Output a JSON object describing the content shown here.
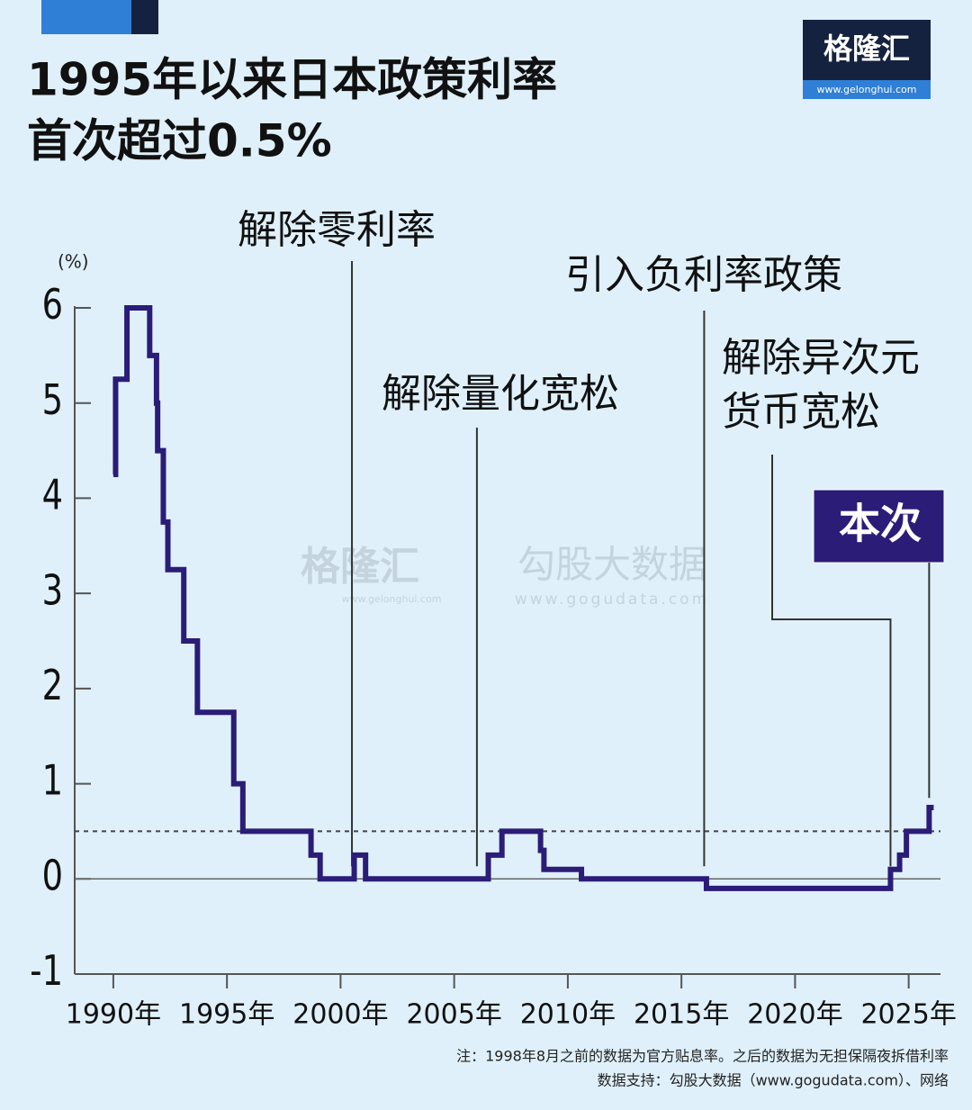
{
  "chart_data": {
    "type": "step",
    "title_lines": [
      "1995年以来日本政策利率",
      "首次超过0.5%"
    ],
    "y_unit": "(%)",
    "brand": {
      "name": "格隆汇",
      "url": "www.gelonghui.com"
    },
    "watermarks": [
      "格隆汇",
      "www.gelonghui.com",
      "勾股大数据",
      "www.gogudata.com"
    ],
    "color": "#2b1c78",
    "x": [
      1990.0,
      1990.1,
      1990.6,
      1991.6,
      1991.9,
      1991.95,
      1992.2,
      1992.4,
      1993.1,
      1993.7,
      1995.3,
      1995.7,
      1998.7,
      1999.1,
      2000.6,
      2001.1,
      2006.5,
      2007.1,
      2008.8,
      2008.95,
      2010.6,
      2016.1,
      2024.2,
      2024.6,
      2024.9,
      2025.9,
      2026.1
    ],
    "values": [
      4.25,
      5.25,
      6.0,
      5.5,
      5.0,
      4.5,
      3.75,
      3.25,
      2.5,
      1.75,
      1.0,
      0.5,
      0.25,
      0.0,
      0.25,
      0.0,
      0.25,
      0.5,
      0.3,
      0.1,
      0.0,
      -0.1,
      0.1,
      0.25,
      0.5,
      0.75,
      0.75
    ],
    "reference_line": 0.5,
    "xlim": [
      1988.3,
      2026.4
    ],
    "xticks": [
      {
        "value": 1990,
        "label": "1990年"
      },
      {
        "value": 1995,
        "label": "1995年"
      },
      {
        "value": 2000,
        "label": "2000年"
      },
      {
        "value": 2005,
        "label": "2005年"
      },
      {
        "value": 2010,
        "label": "2010年"
      },
      {
        "value": 2015,
        "label": "2015年"
      },
      {
        "value": 2020,
        "label": "2020年"
      },
      {
        "value": 2025,
        "label": "2025年"
      }
    ],
    "ylim": [
      -1,
      6
    ],
    "yticks": [
      -1,
      0,
      1,
      2,
      3,
      4,
      5,
      6
    ],
    "annotations": [
      {
        "lines": [
          "解除零利率"
        ],
        "x": 2000.5
      },
      {
        "lines": [
          "解除量化宽松"
        ],
        "x": 2006.0
      },
      {
        "lines": [
          "引入负利率政策"
        ],
        "x": 2016.0
      },
      {
        "lines": [
          "解除异次元",
          "货币宽松"
        ],
        "x": 2024.2
      },
      {
        "lines": [
          "本次"
        ],
        "x": 2025.9
      }
    ],
    "note": "注：1998年8月之前的数据为官方贴息率。之后的数据为无担保隔夜拆借利率",
    "source": "数据支持：勾股大数据（www.gogudata.com）、网络"
  }
}
